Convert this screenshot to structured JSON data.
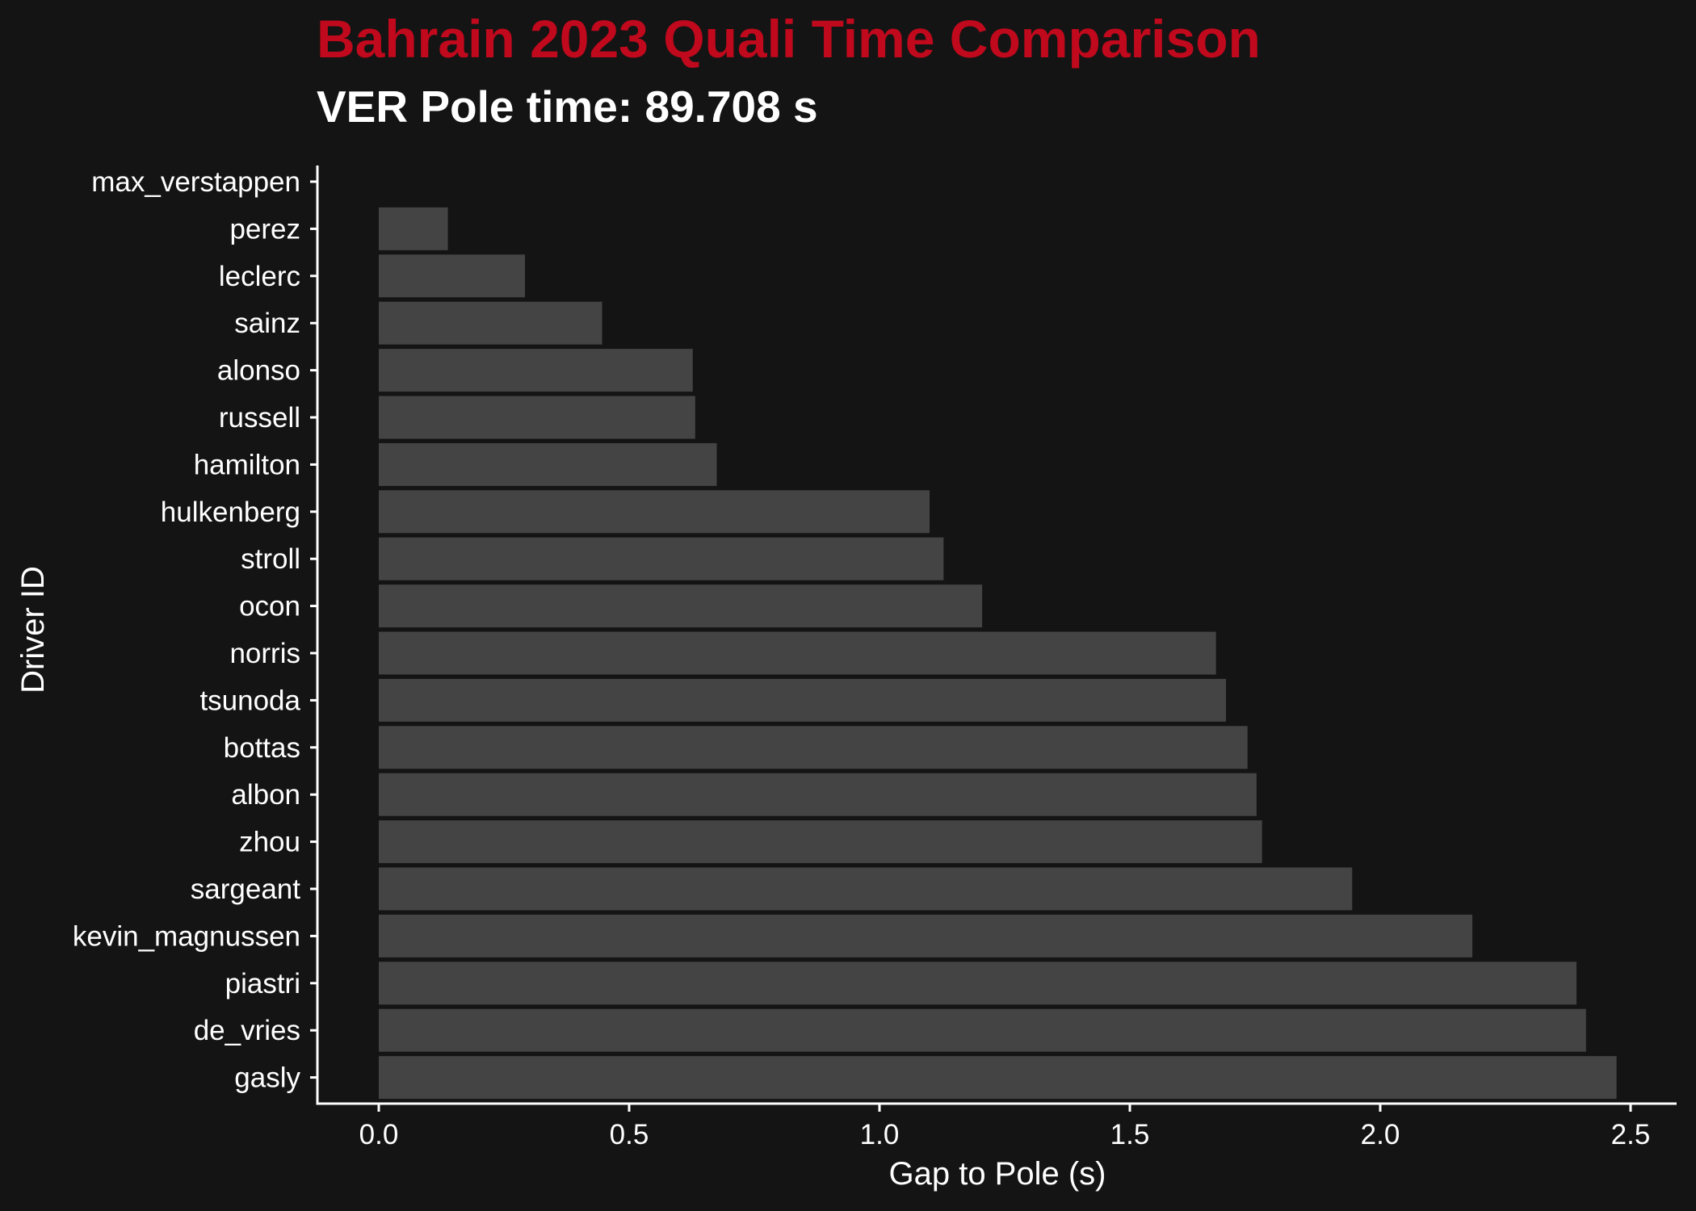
{
  "chart_data": {
    "type": "bar",
    "orientation": "horizontal",
    "title": "Bahrain 2023 Quali Time Comparison",
    "subtitle": "VER Pole time: 89.708 s",
    "xlabel": "Gap to Pole (s)",
    "ylabel": "Driver ID",
    "xlim": [
      -0.12,
      2.58
    ],
    "x_ticks": [
      "0.0",
      "0.5",
      "1.0",
      "1.5",
      "2.0",
      "2.5"
    ],
    "grid": false,
    "categories": [
      "max_verstappen",
      "perez",
      "leclerc",
      "sainz",
      "alonso",
      "russell",
      "hamilton",
      "hulkenberg",
      "stroll",
      "ocon",
      "norris",
      "tsunoda",
      "bottas",
      "albon",
      "zhou",
      "sargeant",
      "kevin_magnussen",
      "piastri",
      "de_vries",
      "gasly"
    ],
    "values": [
      0.0,
      0.138,
      0.292,
      0.446,
      0.627,
      0.632,
      0.675,
      1.1,
      1.128,
      1.205,
      1.672,
      1.692,
      1.735,
      1.753,
      1.764,
      1.944,
      2.184,
      2.392,
      2.411,
      2.472
    ]
  },
  "colors": {
    "background": "#141414",
    "bar": "#444444",
    "title": "#c0091c",
    "text": "#ffffff",
    "axis": "#ffffff"
  }
}
